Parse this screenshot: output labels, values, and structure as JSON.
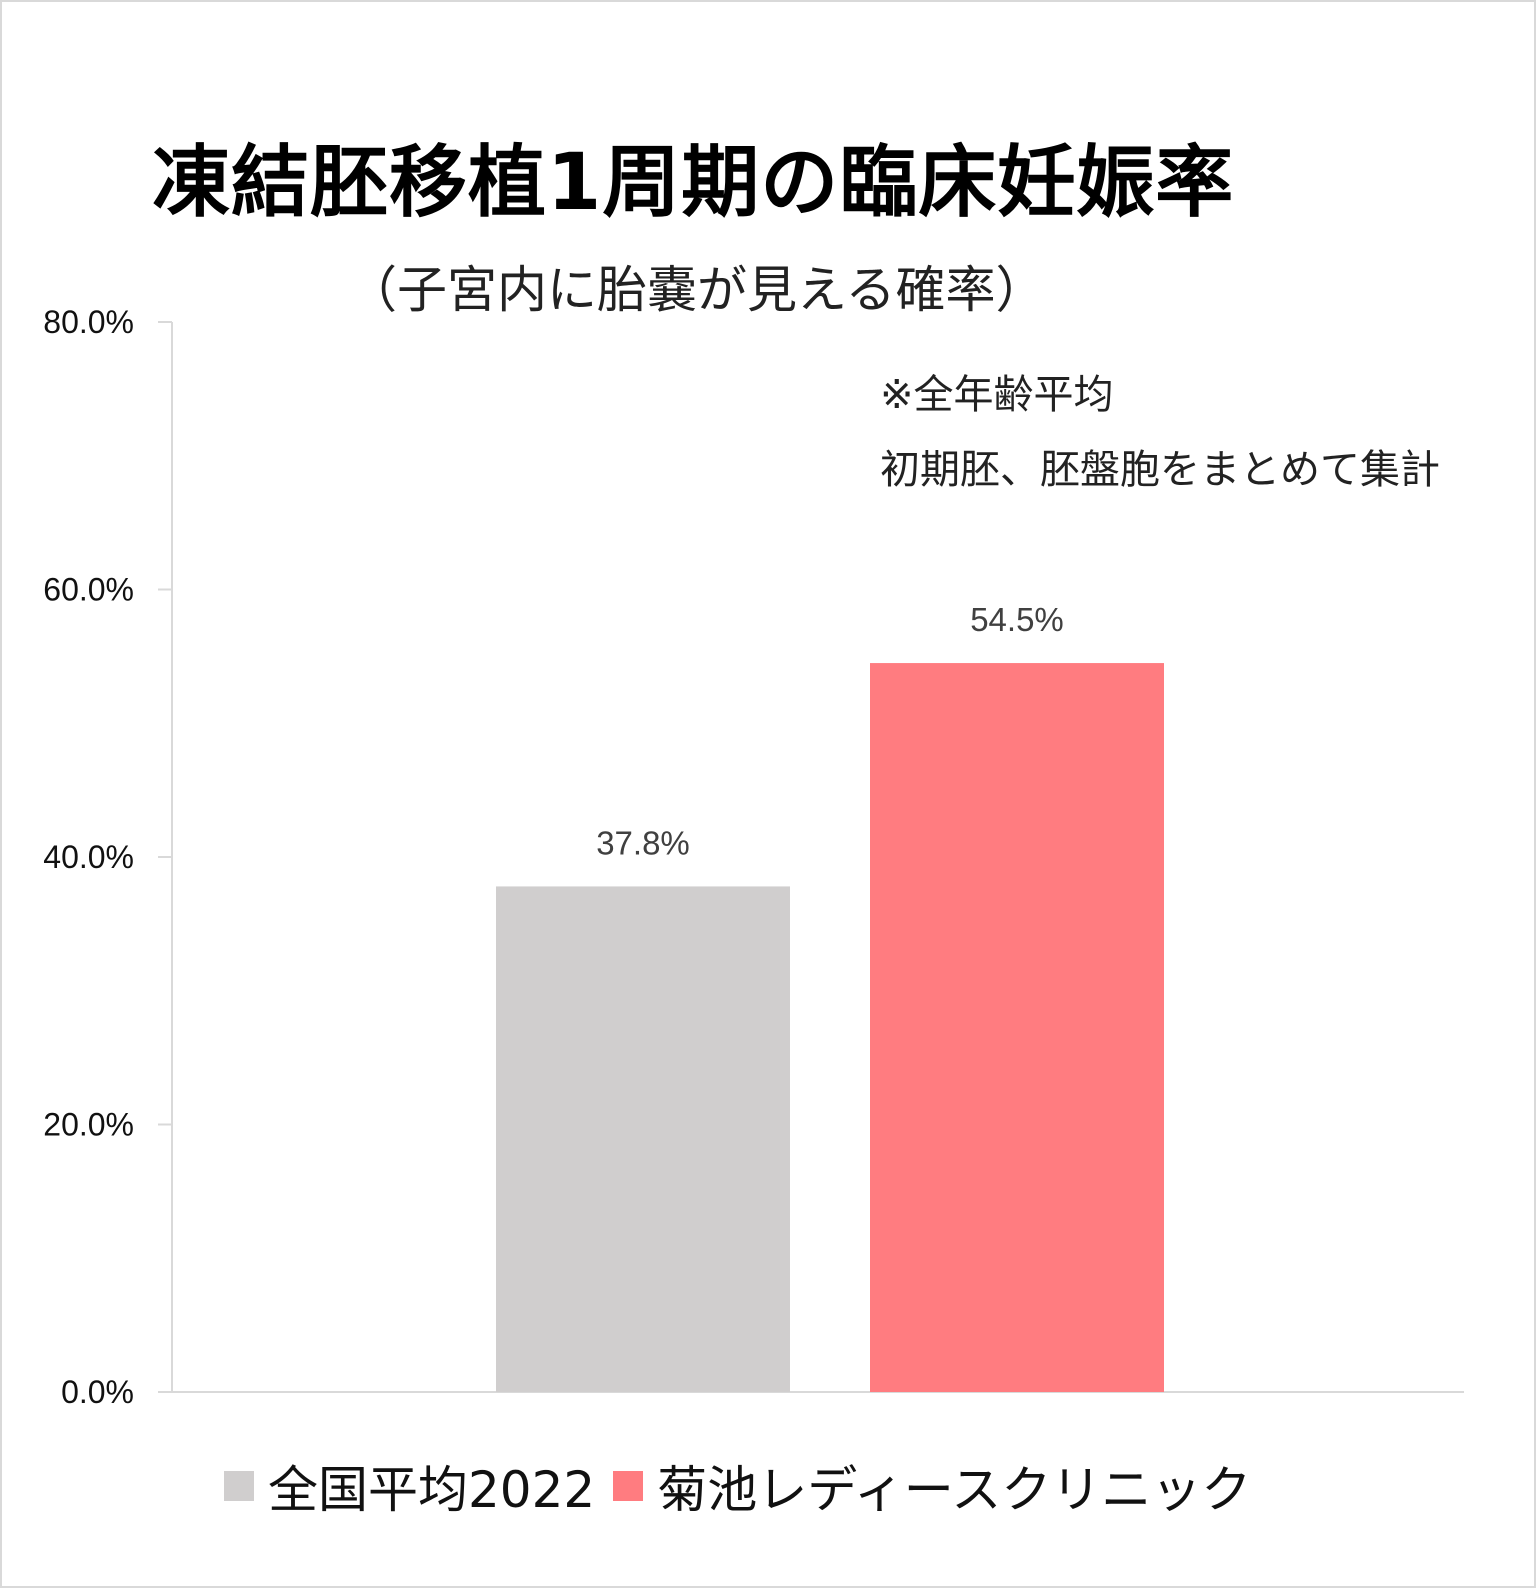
{
  "chart_data": {
    "type": "bar",
    "title": "凍結胚移植1周期の臨床妊娠率",
    "subtitle": "（子宮内に胎嚢が見える確率）",
    "notes": [
      "※全年齢平均",
      "初期胚、胚盤胞をまとめて集計"
    ],
    "categories": [
      "全国平均2022",
      "菊池レディースクリニック"
    ],
    "values": [
      37.8,
      54.5
    ],
    "data_labels": [
      "37.8%",
      "54.5%"
    ],
    "colors": [
      "#d0cece",
      "#ff7c80"
    ],
    "ylim": [
      0,
      80
    ],
    "yticks": [
      0,
      20,
      40,
      60,
      80
    ],
    "ytick_labels": [
      "0.0%",
      "20.0%",
      "40.0%",
      "60.0%",
      "80.0%"
    ],
    "xlabel": "",
    "ylabel": "",
    "grid": false,
    "legend": {
      "placement": "bottom",
      "entries": [
        "全国平均2022",
        "菊池レディースクリニック"
      ]
    }
  }
}
